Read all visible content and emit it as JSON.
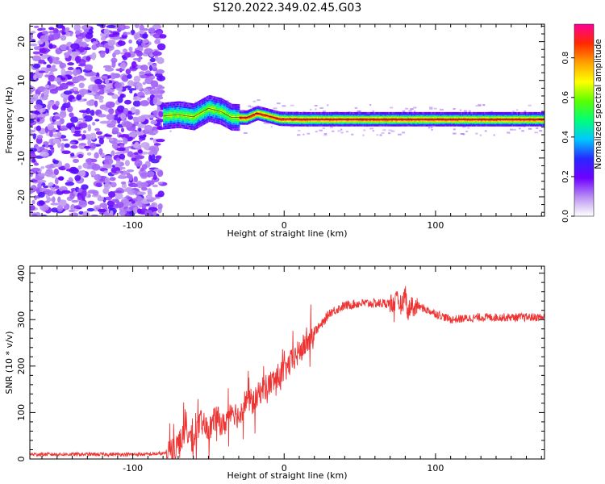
{
  "title": "S120.2022.349.02.45.G03",
  "chart_data": [
    {
      "type": "heatmap",
      "xlabel": "Height of straight line (km)",
      "ylabel": "Frequency (Hz)",
      "xlim": [
        -168,
        172
      ],
      "ylim": [
        -25,
        24.5
      ],
      "xticks": [
        -100,
        0,
        100
      ],
      "yticks": [
        -20,
        -10,
        0,
        10,
        20
      ],
      "colorbar": {
        "label": "Normalized spectral amplitude",
        "ticks": [
          0.0,
          0.2,
          0.4,
          0.6,
          0.8
        ],
        "range": [
          0,
          0.97
        ]
      },
      "noise_region_x": [
        -168,
        -80
      ],
      "ridge": [
        {
          "x": -80,
          "y": 0.8
        },
        {
          "x": -70,
          "y": 1.2
        },
        {
          "x": -60,
          "y": 0.6
        },
        {
          "x": -50,
          "y": 2.8
        },
        {
          "x": -42,
          "y": 2.0
        },
        {
          "x": -35,
          "y": 0.5
        },
        {
          "x": -25,
          "y": 0.4
        },
        {
          "x": -18,
          "y": 1.6
        },
        {
          "x": -10,
          "y": 0.8
        },
        {
          "x": -3,
          "y": 0.1
        },
        {
          "x": 10,
          "y": 0.0
        },
        {
          "x": 50,
          "y": 0.0
        },
        {
          "x": 100,
          "y": 0.0
        },
        {
          "x": 130,
          "y": 0.0
        },
        {
          "x": 172,
          "y": 0.0
        }
      ]
    },
    {
      "type": "line",
      "xlabel": "Height of straight line (km)",
      "ylabel": "SNR (10 * v/v)",
      "xlim": [
        -168,
        172
      ],
      "ylim": [
        0,
        415
      ],
      "xticks": [
        -100,
        0,
        100
      ],
      "yticks": [
        0,
        100,
        200,
        300,
        400
      ],
      "color": "#ee3333",
      "series": [
        {
          "x": [
            -168,
            -150,
            -130,
            -110,
            -90,
            -78,
            -70,
            -65,
            -60,
            -55,
            -50,
            -45,
            -40,
            -35,
            -30,
            -25,
            -20,
            -15,
            -10,
            -5,
            0,
            5,
            10,
            15,
            20,
            25,
            30,
            40,
            50,
            60,
            70,
            75,
            78,
            80,
            82,
            84,
            86,
            88,
            95,
            110,
            130,
            150,
            172
          ],
          "y": [
            10,
            10,
            10,
            10,
            10,
            12,
            30,
            60,
            40,
            80,
            60,
            90,
            70,
            110,
            90,
            130,
            120,
            150,
            160,
            175,
            190,
            210,
            230,
            250,
            275,
            290,
            315,
            330,
            335,
            335,
            335,
            340,
            330,
            360,
            310,
            340,
            320,
            330,
            320,
            300,
            305,
            305,
            305
          ]
        }
      ]
    }
  ]
}
